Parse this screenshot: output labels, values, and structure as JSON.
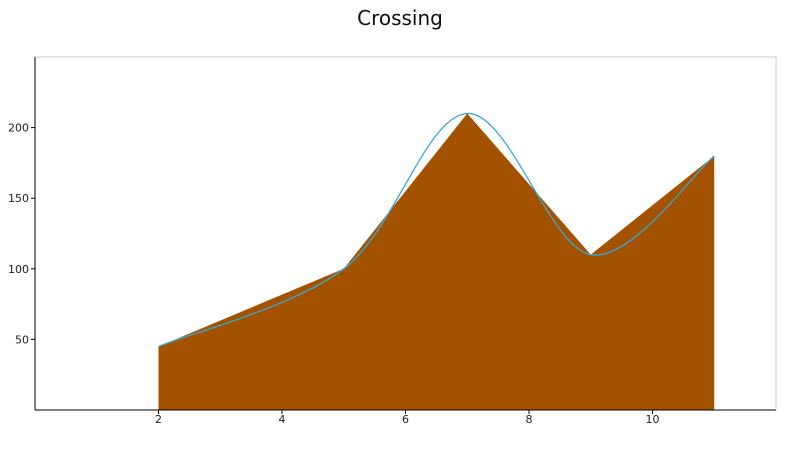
{
  "chart_data": {
    "type": "area",
    "title": "Crossing",
    "xlabel": "",
    "ylabel": "",
    "xlim": [
      0,
      12
    ],
    "ylim": [
      0,
      250
    ],
    "xticks": [
      2,
      4,
      6,
      8,
      10
    ],
    "yticks": [
      50,
      100,
      150,
      200
    ],
    "grid": false,
    "series": [
      {
        "type": "area",
        "x": [
          2,
          5,
          7,
          9,
          11
        ],
        "values": [
          45,
          100,
          210,
          110,
          180
        ]
      },
      {
        "type": "spline",
        "x": [
          2,
          5,
          7,
          9,
          11
        ],
        "values": [
          45,
          100,
          210,
          110,
          180
        ]
      }
    ],
    "colors": {
      "area": "#a35200",
      "line": "#3aa7d6",
      "axis": "#000000",
      "frame": "#cccccc"
    }
  }
}
